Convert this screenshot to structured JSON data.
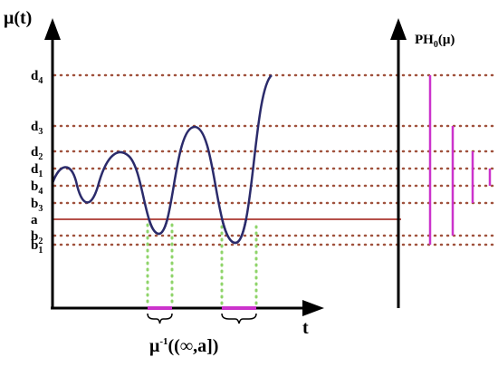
{
  "y_axis_label": "μ(t)",
  "x_axis_label": "t",
  "right_axis_label": {
    "base": "PH",
    "sub": "0",
    "suffix": "(μ)"
  },
  "levels": [
    {
      "base": "d",
      "sub": "4"
    },
    {
      "base": "d",
      "sub": "3"
    },
    {
      "base": "d",
      "sub": "2"
    },
    {
      "base": "d",
      "sub": "1"
    },
    {
      "base": "b",
      "sub": "4"
    },
    {
      "base": "b",
      "sub": "3"
    },
    {
      "base": "a",
      "sub": null
    },
    {
      "base": "b",
      "sub": "2"
    },
    {
      "base": "b",
      "sub": "1"
    }
  ],
  "preimage_label": {
    "base": "μ",
    "sup": "-1",
    "suffix": "((∞,a])"
  }
}
